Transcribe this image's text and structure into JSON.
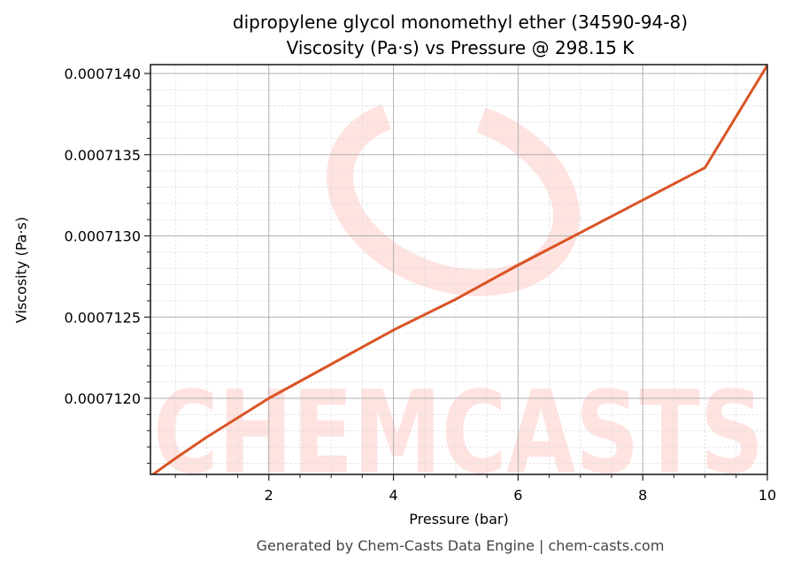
{
  "header": {
    "title_line1": "dipropylene glycol monomethyl ether (34590-94-8)",
    "title_line2": "Viscosity (Pa·s) vs Pressure @ 298.15 K"
  },
  "footer": {
    "text": "Generated by Chem-Casts Data Engine | chem-casts.com"
  },
  "watermark": {
    "text": "CHEMCASTS",
    "color": "#ffe3e0"
  },
  "colors": {
    "line": "#d95425",
    "axis": "#222222",
    "major_grid": "#b0b0b0",
    "minor_grid": "#dcdcdc"
  },
  "chart_data": {
    "type": "line",
    "title": "dipropylene glycol monomethyl ether (34590-94-8)\nViscosity (Pa·s) vs Pressure @ 298.15 K",
    "xlabel": "Pressure (bar)",
    "ylabel": "Viscosity (Pa·s)",
    "xlim": [
      0.1,
      10
    ],
    "ylim": [
      0.00071152,
      0.00071405
    ],
    "x_ticks": [
      2,
      4,
      6,
      8,
      10
    ],
    "x_tick_labels": [
      "2",
      "4",
      "6",
      "8",
      "10"
    ],
    "y_ticks": [
      0.000712,
      0.0007125,
      0.000713,
      0.0007135,
      0.000714
    ],
    "y_tick_labels": [
      "0.0007120",
      "0.0007125",
      "0.0007130",
      "0.0007135",
      "0.0007140"
    ],
    "grid": true,
    "minor_grid": true,
    "legend": null,
    "series": [
      {
        "name": "Viscosity",
        "x": [
          0.1,
          0.5,
          1,
          1.5,
          2,
          3,
          4,
          5,
          6,
          7,
          8,
          9,
          10
        ],
        "values": [
          0.00071152,
          0.00071163,
          0.00071176,
          0.00071188,
          0.000712,
          0.00071221,
          0.00071242,
          0.00071261,
          0.00071282,
          0.00071302,
          0.00071322,
          0.00071342,
          0.00071405
        ]
      }
    ]
  }
}
